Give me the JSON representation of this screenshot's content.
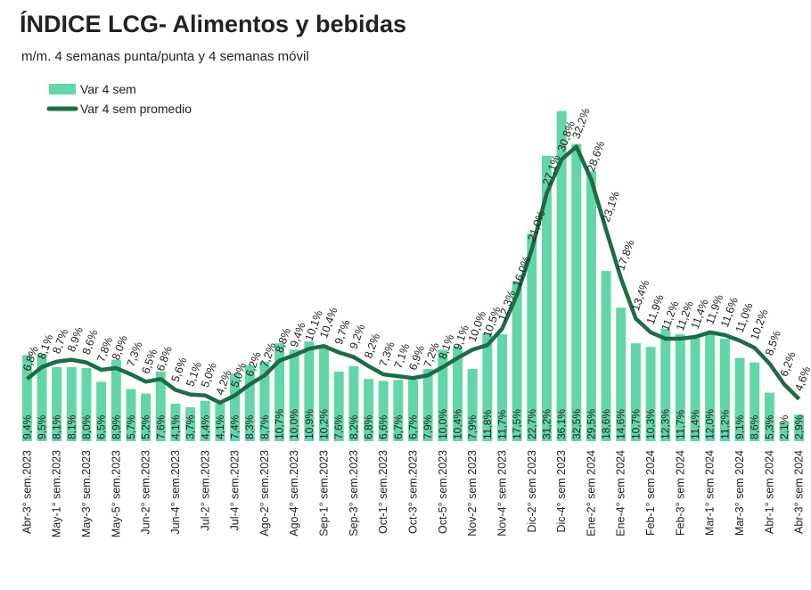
{
  "chart_data": {
    "type": "bar_line",
    "title": "ÍNDICE LCG- Alimentos y bebidas",
    "subtitle": "m/m. 4 semanas punta/punta y 4 semanas móvil",
    "categories": [
      "Abr-3° sem.2023",
      null,
      "May-1° sem.2023",
      null,
      "May-3° sem.2023",
      null,
      "May-5° sem.2023",
      null,
      "Jun-2° sem.2023",
      null,
      "Jun-4° sem.2023",
      null,
      "Jul-2° sem.2023",
      null,
      "Jul-4° sem.2023",
      null,
      "Ago-2° sem.2023",
      null,
      "Ago-4° sem.2023",
      null,
      "Sep-1° sem.2023",
      null,
      "Sep-3° sem.2023",
      null,
      "Oct-1° sem.2023",
      null,
      "Oct-3° sem.2023",
      null,
      "Oct-5° sem.2023",
      null,
      "Nov-2° sem 2023",
      null,
      "Nov-4° sem 2023",
      null,
      "Dic-2° sem 2023",
      null,
      "Dic-4° sem 2023",
      null,
      "Ene-2° sem 2024",
      null,
      "Ene-4° sem 2024",
      null,
      "Feb-1° sem 2024",
      null,
      "Feb-3° sem 2024",
      null,
      "Mar-1° sem 2024",
      null,
      "Mar-3° sem 2024",
      null,
      "Abr-1° sem 2024",
      null,
      "Abr-3° sem 2024"
    ],
    "ylim": [
      0,
      38
    ],
    "series": [
      {
        "name": "Var 4 sem",
        "type": "bar",
        "color": "#62d6a9",
        "values": [
          9.4,
          9.5,
          8.1,
          8.1,
          8.0,
          6.5,
          8.9,
          5.7,
          5.2,
          7.6,
          4.1,
          3.7,
          4.4,
          4.1,
          7.4,
          8.3,
          8.7,
          10.7,
          10.0,
          10.9,
          10.2,
          7.6,
          8.2,
          6.8,
          6.6,
          6.7,
          6.7,
          7.9,
          10.0,
          10.4,
          7.9,
          11.8,
          11.7,
          17.5,
          22.7,
          31.2,
          36.1,
          32.5,
          29.5,
          18.6,
          14.6,
          10.7,
          10.3,
          12.3,
          11.7,
          11.4,
          12.0,
          11.2,
          9.1,
          8.6,
          5.3,
          2.1,
          2.9
        ],
        "value_labels": [
          "9,4%",
          "9,5%",
          "8,1%",
          "8,1%",
          "8,0%",
          "6,5%",
          "8,9%",
          "5,7%",
          "5,2%",
          "7,6%",
          "4,1%",
          "3,7%",
          "4,4%",
          "4,1%",
          "7,4%",
          "8,3%",
          "8,7%",
          "10,7%",
          "10,0%",
          "10,9%",
          "10,2%",
          "7,6%",
          "8,2%",
          "6,8%",
          "6,6%",
          "6,7%",
          "6,7%",
          "7,9%",
          "10,0%",
          "10,4%",
          "7,9%",
          "11,8%",
          "11,7%",
          "17,5%",
          "22,7%",
          "31,2%",
          "36,1%",
          "32,5%",
          "29,5%",
          "18,6%",
          "14,6%",
          "10,7%",
          "10,3%",
          "12,3%",
          "11,7%",
          "11,4%",
          "12,0%",
          "11,2%",
          "9,1%",
          "8,6%",
          "5,3%",
          "2,1%",
          "2,9%"
        ]
      },
      {
        "name": "Var 4 sem promedio",
        "type": "line",
        "color": "#1d6b47",
        "values": [
          6.8,
          8.1,
          8.7,
          8.9,
          8.6,
          7.8,
          8.0,
          7.3,
          6.5,
          6.8,
          5.6,
          5.1,
          5.0,
          4.2,
          5.0,
          6.2,
          7.2,
          8.8,
          9.4,
          10.1,
          10.4,
          9.7,
          9.2,
          8.2,
          7.3,
          7.1,
          6.9,
          7.2,
          8.1,
          9.1,
          10.0,
          10.5,
          12.3,
          16.0,
          21.0,
          27.1,
          30.8,
          32.2,
          28.6,
          23.1,
          17.8,
          13.4,
          11.9,
          11.2,
          11.2,
          11.4,
          11.9,
          11.6,
          11.0,
          10.2,
          8.5,
          6.2,
          4.6
        ],
        "value_labels": [
          "6,8%",
          "8,1%",
          "8,7%",
          "8,9%",
          "8,6%",
          "7,8%",
          "8,0%",
          "7,3%",
          "6,5%",
          "6,8%",
          "5,6%",
          "5,1%",
          "5,0%",
          "4,2%",
          "5,0%",
          "6,2%",
          "7,2%",
          "8,8%",
          "9,4%",
          "10,1%",
          "10,4%",
          "9,7%",
          "9,2%",
          "8,2%",
          "7,3%",
          "7,1%",
          "6,9%",
          "7,2%",
          "8,1%",
          "9,1%",
          "10,0%",
          "10,5%",
          "12,3%",
          "16,0%",
          "21,0%",
          "27,1%",
          "30,8%",
          "32,2%",
          "28,6%",
          "23,1%",
          "17,8%",
          "13,4%",
          "11,9%",
          "11,2%",
          "11,2%",
          "11,4%",
          "11,9%",
          "11,6%",
          "11,0%",
          "10,2%",
          "8,5%",
          "6,2%",
          "4,6%"
        ]
      }
    ]
  }
}
